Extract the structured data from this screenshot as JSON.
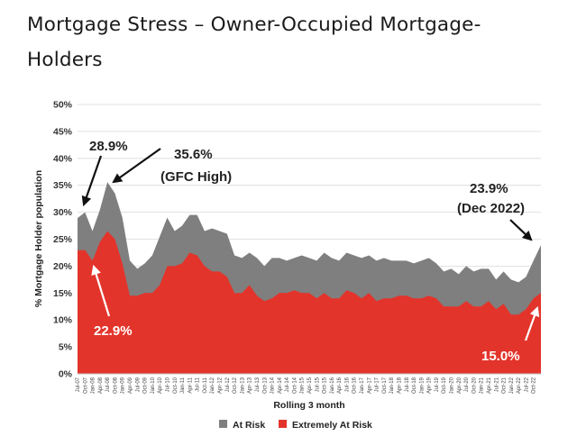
{
  "title": "Mortgage Stress – Owner-Occupied Mortgage-Holders",
  "chart_data": {
    "type": "area",
    "ylabel": "% Mortgage Holder population",
    "xlabel": "Rolling 3 month",
    "ylim": [
      0,
      50
    ],
    "yticks": [
      "0%",
      "5%",
      "10%",
      "15%",
      "20%",
      "25%",
      "30%",
      "35%",
      "40%",
      "45%",
      "50%"
    ],
    "x": [
      "Jul-07",
      "Oct-07",
      "Jan-08",
      "Apr-08",
      "Jul-08",
      "Oct-08",
      "Jan-09",
      "Apr-09",
      "Jul-09",
      "Oct-09",
      "Jan-10",
      "Apr-10",
      "Jul-10",
      "Oct-10",
      "Jan-11",
      "Apr-11",
      "Jul-11",
      "Oct-11",
      "Jan-12",
      "Apr-12",
      "Jul-12",
      "Oct-12",
      "Jan-13",
      "Apr-13",
      "Jul-13",
      "Oct-13",
      "Jan-14",
      "Apr-14",
      "Jul-14",
      "Oct-14",
      "Jan-15",
      "Apr-15",
      "Jul-15",
      "Oct-15",
      "Jan-16",
      "Apr-16",
      "Jul-16",
      "Oct-16",
      "Jan-17",
      "Apr-17",
      "Jul-17",
      "Oct-17",
      "Jan-18",
      "Apr-18",
      "Jul-18",
      "Oct-18",
      "Jan-19",
      "Apr-19",
      "Jul-19",
      "Oct-19",
      "Jan-20",
      "Apr-20",
      "Jul-20",
      "Oct-20",
      "Jan-21",
      "Apr-21",
      "Jul-21",
      "Oct-21",
      "Jan-22",
      "Apr-22",
      "Jul-22",
      "Oct-22",
      "Dec-22"
    ],
    "series": [
      {
        "name": "At Risk",
        "color": "#7f7f7f",
        "values": [
          28.9,
          30.0,
          26.5,
          30.5,
          35.6,
          33.5,
          29.0,
          21.0,
          19.5,
          20.5,
          22.0,
          25.5,
          29.0,
          26.5,
          27.5,
          29.5,
          29.5,
          26.5,
          27.0,
          26.5,
          26.0,
          22.0,
          21.5,
          22.5,
          21.5,
          20.0,
          21.5,
          21.5,
          21.0,
          21.5,
          22.0,
          21.5,
          21.0,
          22.5,
          21.5,
          21.0,
          22.5,
          22.0,
          21.5,
          22.0,
          21.0,
          21.5,
          21.0,
          21.0,
          21.0,
          20.5,
          21.0,
          21.5,
          20.5,
          19.0,
          19.5,
          18.5,
          20.0,
          19.0,
          19.5,
          19.5,
          17.5,
          19.0,
          17.5,
          17.0,
          18.0,
          21.0,
          23.9
        ]
      },
      {
        "name": "Extremely At Risk",
        "color": "#e3342b",
        "values": [
          22.9,
          23.0,
          21.0,
          24.5,
          26.5,
          25.0,
          20.5,
          14.5,
          14.5,
          15.0,
          15.0,
          16.5,
          20.0,
          20.0,
          20.5,
          22.5,
          22.0,
          20.0,
          19.0,
          19.0,
          18.0,
          15.0,
          15.0,
          16.5,
          14.5,
          13.5,
          14.0,
          15.0,
          15.0,
          15.5,
          15.0,
          15.0,
          14.0,
          15.0,
          14.0,
          14.0,
          15.5,
          15.0,
          14.0,
          15.0,
          13.5,
          14.0,
          14.0,
          14.5,
          14.5,
          14.0,
          14.0,
          14.5,
          14.0,
          12.5,
          12.5,
          12.5,
          13.5,
          12.5,
          12.5,
          13.5,
          12.0,
          13.0,
          11.0,
          11.0,
          12.0,
          14.0,
          15.0
        ]
      }
    ],
    "annotations": [
      {
        "text": "28.9%",
        "style": "dark"
      },
      {
        "text": "35.6%",
        "style": "dark"
      },
      {
        "text": "(GFC High)",
        "style": "dark"
      },
      {
        "text": "23.9%",
        "style": "dark"
      },
      {
        "text": "(Dec 2022)",
        "style": "dark"
      },
      {
        "text": "22.9%",
        "style": "light"
      },
      {
        "text": "15.0%",
        "style": "light"
      }
    ],
    "legend": [
      {
        "label": "At Risk",
        "color": "#7f7f7f"
      },
      {
        "label": "Extremely At Risk",
        "color": "#e3342b"
      }
    ]
  }
}
